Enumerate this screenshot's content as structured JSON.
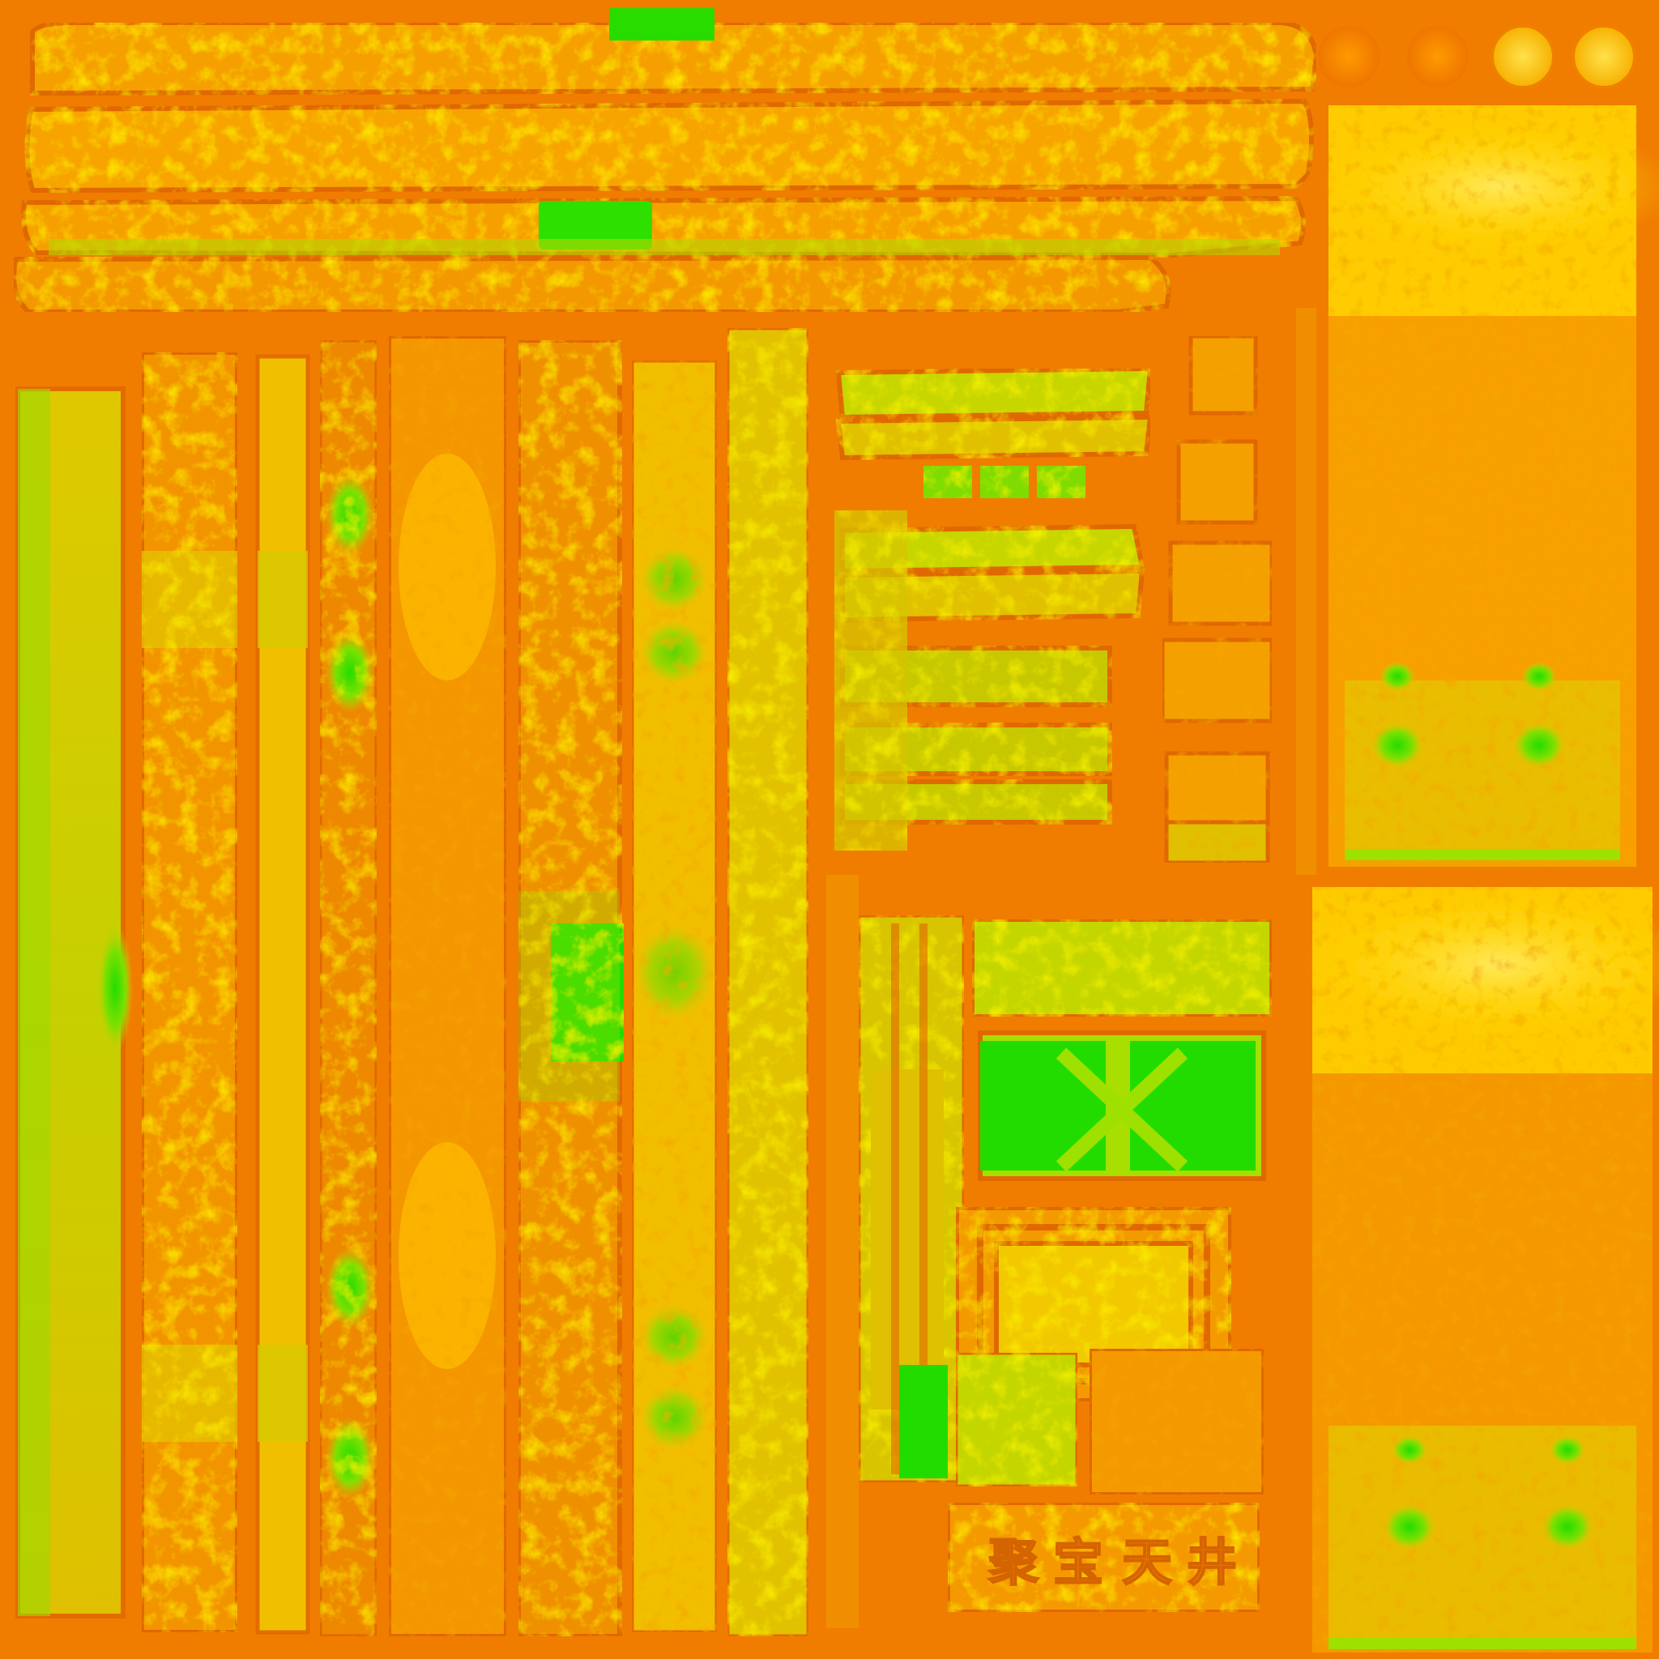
{
  "texture_atlas": {
    "palette": {
      "base_orange": "#f07d00",
      "deep_orange": "#e86c00",
      "dark_orange": "#d95d00",
      "amber": "#f6a300",
      "mustard": "#e2c400",
      "yellow": "#ffd800",
      "pale_yellow": "#ffe95a",
      "lime": "#a8e000",
      "bright_green": "#22dd00"
    },
    "plaque_glyphs": [
      {
        "char": "聚"
      },
      {
        "char": "宝"
      },
      {
        "char": "天"
      },
      {
        "char": "井"
      }
    ],
    "bottom_panel_glyph_marks": [
      {
        "char": "x"
      },
      {
        "char": "x"
      }
    ]
  }
}
